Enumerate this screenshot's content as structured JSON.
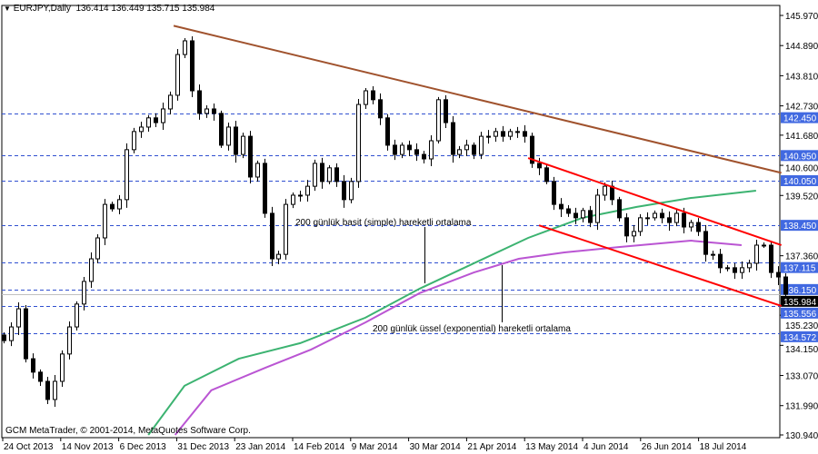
{
  "header": {
    "symbol": "EURJPY,Daily",
    "ohlc": "136.414 136.449 135.715 135.984"
  },
  "footer": {
    "copyright": "GCM MetaTrader, © 2001-2014, MetaQuotes Software Corp."
  },
  "colors": {
    "trendline": "#a0522d",
    "channel": "#ff0000",
    "sma": "#3cb371",
    "ema": "#ba55d3",
    "level": "#3050d0",
    "level_label_bg": "#4169e1",
    "current_bg": "#000000"
  },
  "chart_data": {
    "type": "candlestick",
    "symbol": "EURJPY",
    "timeframe": "Daily",
    "ylim": [
      130.94,
      145.97
    ],
    "y_ticks": [
      "145.970",
      "144.890",
      "143.810",
      "142.730",
      "141.680",
      "140.600",
      "139.520",
      "137.360",
      "135.230",
      "134.150",
      "133.070",
      "131.990",
      "130.940"
    ],
    "x_ticks": [
      "24 Oct 2013",
      "14 Nov 2013",
      "6 Dec 2013",
      "31 Dec 2013",
      "23 Jan 2014",
      "14 Feb 2014",
      "9 Mar 2014",
      "30 Mar 2014",
      "21 Apr 2014",
      "13 May 2014",
      "4 Jun 2014",
      "26 Jun 2014",
      "18 Jul 2014"
    ],
    "closes": [
      134.32,
      134.81,
      135.46,
      133.67,
      133.19,
      132.86,
      132.21,
      132.86,
      133.84,
      134.81,
      135.63,
      136.44,
      137.25,
      138.0,
      139.2,
      139.04,
      139.37,
      141.16,
      141.81,
      141.97,
      142.3,
      142.13,
      142.62,
      143.11,
      144.57,
      145.06,
      143.27,
      142.46,
      142.62,
      142.46,
      141.32,
      141.97,
      140.99,
      141.64,
      140.18,
      140.67,
      138.88,
      137.25,
      137.41,
      139.2,
      139.53,
      139.53,
      139.85,
      140.67,
      140.02,
      140.51,
      140.02,
      139.37,
      140.02,
      142.78,
      143.27,
      142.95,
      142.3,
      141.32,
      140.99,
      141.32,
      141.16,
      140.99,
      140.83,
      141.48,
      142.95,
      142.13,
      140.99,
      141.16,
      141.32,
      140.99,
      141.64,
      141.64,
      141.81,
      141.64,
      141.81,
      141.81,
      141.64,
      140.67,
      140.51,
      140.02,
      139.2,
      139.04,
      138.88,
      138.72,
      138.98,
      138.55,
      139.53,
      139.85,
      139.37,
      138.72,
      138.07,
      138.23,
      138.72,
      138.72,
      138.88,
      138.72,
      138.55,
      138.88,
      138.39,
      138.55,
      138.23,
      137.41,
      137.41,
      136.93,
      136.93,
      136.76,
      136.93,
      137.09,
      137.74,
      137.74,
      136.76,
      136.6,
      135.98
    ],
    "levels": [
      {
        "label": "142.450",
        "price": 142.45
      },
      {
        "label": "140.950",
        "price": 140.95
      },
      {
        "label": "140.050",
        "price": 140.05
      },
      {
        "label": "138.450",
        "price": 138.45
      },
      {
        "label": "137.115",
        "price": 137.115
      },
      {
        "label": "136.150",
        "price": 136.15
      },
      {
        "label": "135.556",
        "price": 135.556
      },
      {
        "label": "134.572",
        "price": 134.572
      }
    ],
    "current_price": {
      "label": "135.984",
      "price": 135.984
    },
    "trendlines": [
      {
        "name": "resistance",
        "points": [
          {
            "bar": 23.5,
            "price": 145.6
          },
          {
            "bar": 107.5,
            "price": 140.33
          }
        ]
      },
      {
        "name": "channel-upper",
        "points": [
          {
            "bar": 72.5,
            "price": 140.86
          },
          {
            "bar": 107.5,
            "price": 137.74
          }
        ]
      },
      {
        "name": "channel-lower",
        "points": [
          {
            "bar": 74,
            "price": 138.45
          },
          {
            "bar": 107.5,
            "price": 135.56
          }
        ]
      }
    ],
    "sma200": {
      "bars": [
        20,
        25,
        32.5,
        41,
        50,
        57.5,
        65,
        72.5,
        80,
        87.5,
        95,
        104
      ],
      "prices": [
        130.94,
        132.7,
        133.67,
        134.23,
        135.14,
        136.18,
        137.09,
        138.0,
        138.72,
        139.11,
        139.43,
        139.69
      ]
    },
    "ema200": {
      "bars": [
        23.7,
        28.7,
        36.2,
        42.5,
        50,
        57.5,
        65,
        71.2,
        77.5,
        85,
        95,
        102
      ],
      "prices": [
        130.94,
        132.54,
        133.35,
        134.0,
        134.97,
        136.02,
        136.76,
        137.25,
        137.48,
        137.67,
        137.9,
        137.74
      ]
    },
    "annotations": [
      {
        "text": "200 günlük basit (simple) hareketli ortalama",
        "target": "sma200"
      },
      {
        "text": "200 günlük üssel (exponential) hareketli ortalama",
        "target": "ema200"
      }
    ]
  }
}
